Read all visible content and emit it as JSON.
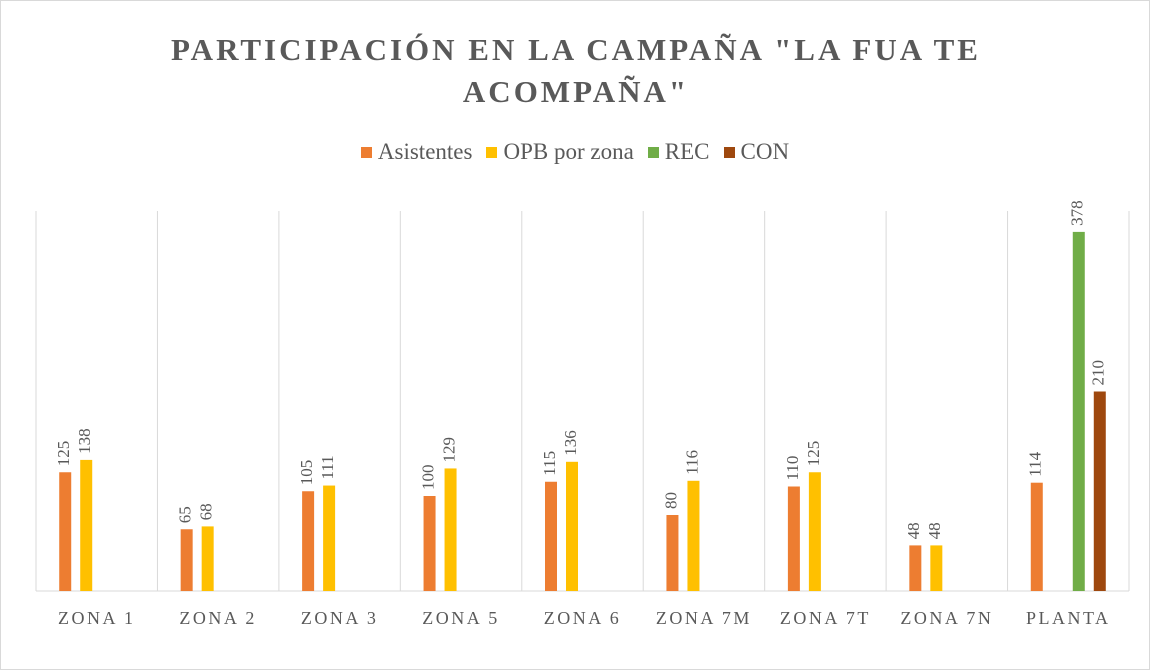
{
  "chart_data": {
    "type": "bar",
    "title": "PARTICIPACIÓN EN LA CAMPAÑA \"LA FUA TE ACOMPAÑA\"",
    "categories": [
      "ZONA 1",
      "ZONA 2",
      "ZONA 3",
      "ZONA 5",
      "ZONA 6",
      "ZONA 7M",
      "ZONA 7T",
      "ZONA 7N",
      "PLANTA"
    ],
    "series": [
      {
        "name": "Asistentes",
        "color": "#ed7d31",
        "values": [
          125,
          65,
          105,
          100,
          115,
          80,
          110,
          48,
          114
        ]
      },
      {
        "name": "OPB por zona",
        "color": "#ffc000",
        "values": [
          138,
          68,
          111,
          129,
          136,
          116,
          125,
          48,
          null
        ]
      },
      {
        "name": "REC",
        "color": "#70ad47",
        "values": [
          null,
          null,
          null,
          null,
          null,
          null,
          null,
          null,
          378
        ]
      },
      {
        "name": "CON",
        "color": "#9e480e",
        "values": [
          null,
          null,
          null,
          null,
          null,
          null,
          null,
          null,
          210
        ]
      }
    ],
    "ylim": [
      0,
      400
    ],
    "legend": "top",
    "data_labels": true
  }
}
